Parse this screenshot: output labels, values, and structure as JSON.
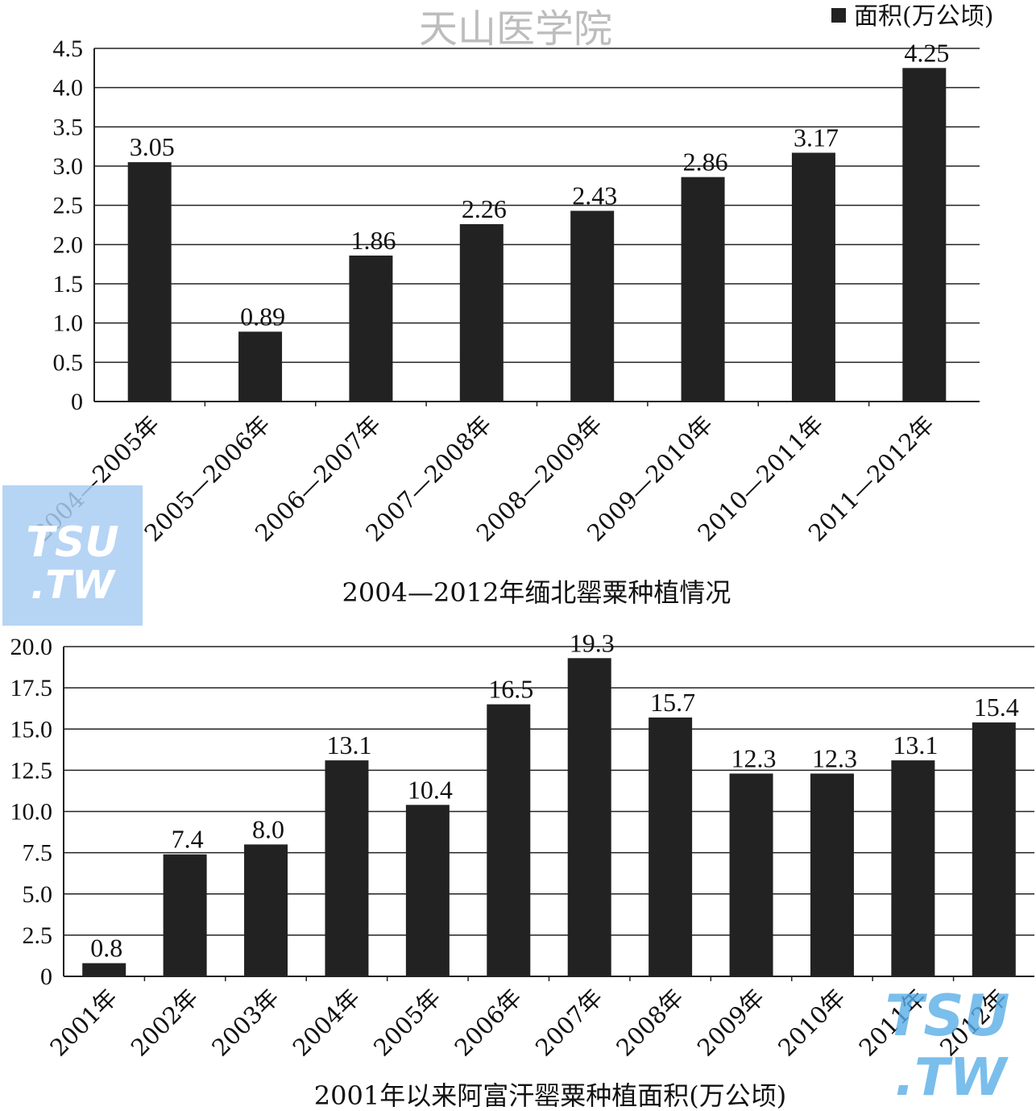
{
  "watermark_top": "天山医学院",
  "watermark_logo": {
    "line1": "TSU",
    "line2": ".TW"
  },
  "legend": {
    "label": "面积(万公顷)"
  },
  "chart_data": [
    {
      "type": "bar",
      "title": "2004—2012年缅北罂粟种植情况",
      "categories": [
        "2004—2005年",
        "2005—2006年",
        "2006—2007年",
        "2007—2008年",
        "2008—2009年",
        "2009—2010年",
        "2010—2011年",
        "2011—2012年"
      ],
      "values": [
        3.05,
        0.89,
        1.86,
        2.26,
        2.43,
        2.86,
        3.17,
        4.25
      ],
      "data_labels": [
        "3.05",
        "0.89",
        "1.86",
        "2.26",
        "2.43",
        "2.86",
        "3.17",
        "4.25"
      ],
      "yticks": [
        "0",
        "0.5",
        "1.0",
        "1.5",
        "2.0",
        "2.5",
        "3.0",
        "3.5",
        "4.0",
        "4.5"
      ],
      "ylim": [
        0,
        4.5
      ],
      "grid": true,
      "legend_position": "top-right",
      "bar_color": "#222222"
    },
    {
      "type": "bar",
      "title": "2001年以来阿富汗罂粟种植面积(万公顷)",
      "categories": [
        "2001年",
        "2002年",
        "2003年",
        "2004年",
        "2005年",
        "2006年",
        "2007年",
        "2008年",
        "2009年",
        "2010年",
        "2011年",
        "2012年"
      ],
      "values": [
        0.8,
        7.4,
        8.0,
        13.1,
        10.4,
        16.5,
        19.3,
        15.7,
        12.3,
        12.3,
        13.1,
        15.4
      ],
      "data_labels": [
        "0.8",
        "7.4",
        "8.0",
        "13.1",
        "10.4",
        "16.5",
        "19.3",
        "15.7",
        "12.3",
        "12.3",
        "13.1",
        "15.4"
      ],
      "yticks": [
        "0",
        "2.5",
        "5.0",
        "7.5",
        "10.0",
        "12.5",
        "15.0",
        "17.5",
        "20.0"
      ],
      "ylim": [
        0,
        20
      ],
      "grid": true,
      "bar_color": "#222222"
    }
  ]
}
